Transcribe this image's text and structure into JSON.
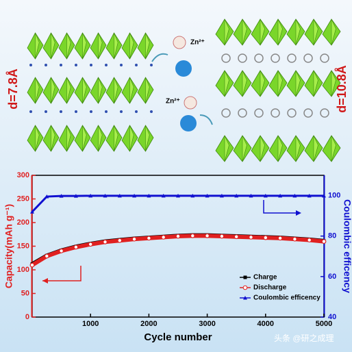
{
  "labels": {
    "left_spacing": "d=7.8Å",
    "right_spacing": "d=10.8Å",
    "ion_top": "Zn²⁺",
    "ion_bottom": "Zn²⁺",
    "watermark": "头条 @研之成理"
  },
  "chart_data": {
    "type": "line",
    "x_label": "Cycle number",
    "y_label": "Capacity(mAh g⁻¹)",
    "y2_label": "Coulombic efficency",
    "x": [
      0,
      250,
      500,
      750,
      1000,
      1250,
      1500,
      1750,
      2000,
      2250,
      2500,
      2750,
      3000,
      3250,
      3500,
      3750,
      4000,
      4250,
      4500,
      4750,
      5000
    ],
    "series": [
      {
        "name": "Charge",
        "color": "#000000",
        "marker": "square",
        "values": [
          112,
          130,
          141,
          149,
          155,
          160,
          163,
          166,
          168,
          170,
          172,
          173,
          173,
          172,
          171,
          170,
          169,
          168,
          166,
          164,
          161
        ]
      },
      {
        "name": "Discharge",
        "color": "#e02020",
        "marker": "circle",
        "values": [
          110,
          129,
          140,
          148,
          154,
          159,
          162,
          165,
          167,
          169,
          171,
          172,
          172,
          171,
          170,
          169,
          168,
          167,
          165,
          163,
          160
        ]
      },
      {
        "name": "Coulombic efficency",
        "color": "#1010d0",
        "marker": "triangle",
        "axis": "y2",
        "values": [
          92,
          99.5,
          99.8,
          99.8,
          99.9,
          99.9,
          99.9,
          99.9,
          99.9,
          99.9,
          99.9,
          99.9,
          99.9,
          99.9,
          99.9,
          99.9,
          99.9,
          99.9,
          99.9,
          99.9,
          99.9
        ]
      }
    ],
    "xlim": [
      0,
      5000
    ],
    "xticks": [
      1000,
      2000,
      3000,
      4000,
      5000
    ],
    "ylim": [
      0,
      300
    ],
    "yticks": [
      0,
      50,
      100,
      150,
      200,
      250,
      300
    ],
    "y2lim": [
      40,
      110
    ],
    "y2ticks": [
      40,
      60,
      80,
      100
    ],
    "left_color": "#e02020",
    "right_color": "#1010d0",
    "legend": "lower right"
  }
}
